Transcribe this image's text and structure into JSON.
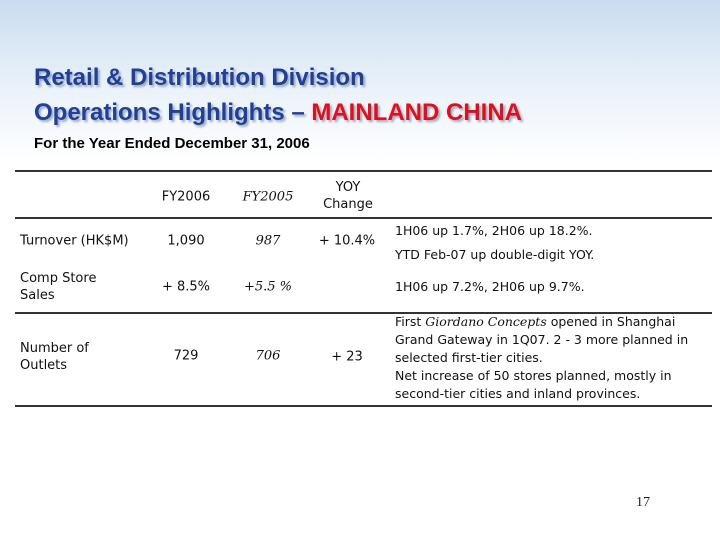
{
  "header": {
    "title_line1": "Retail & Distribution Division",
    "title_line2_prefix": "Operations Highlights – ",
    "title_line2_highlight": "MAINLAND CHINA",
    "subtitle": "For the Year Ended December 31, 2006"
  },
  "table": {
    "columns": {
      "fy2006": "FY2006",
      "fy2005": "FY2005",
      "yoy": "YOY Change"
    },
    "rows": [
      {
        "label": "Turnover (HK$M)",
        "fy2006": "1,090",
        "fy2005": "987",
        "yoy": "+ 10.4%",
        "notes": [
          "1H06 up 1.7%, 2H06 up 18.2%.",
          "YTD Feb-07 up double-digit YOY."
        ]
      },
      {
        "label": "Comp Store Sales",
        "fy2006": "+ 8.5%",
        "fy2005": "+5.5 %",
        "notes": [
          "1H06 up 7.2%, 2H06 up 9.7%."
        ]
      },
      {
        "label": "Number of Outlets",
        "fy2006": "729",
        "fy2005": "706",
        "yoy": "+ 23",
        "note_rich": {
          "pre": "First ",
          "em": "Giordano Concepts",
          "post": " opened in Shanghai Grand Gateway in 1Q07. 2 - 3 more planned in selected first-tier cities."
        },
        "notes": [
          "Net increase of 50 stores planned, mostly in second-tier cities and inland provinces."
        ]
      }
    ]
  },
  "footer": {
    "page_number": "17"
  }
}
